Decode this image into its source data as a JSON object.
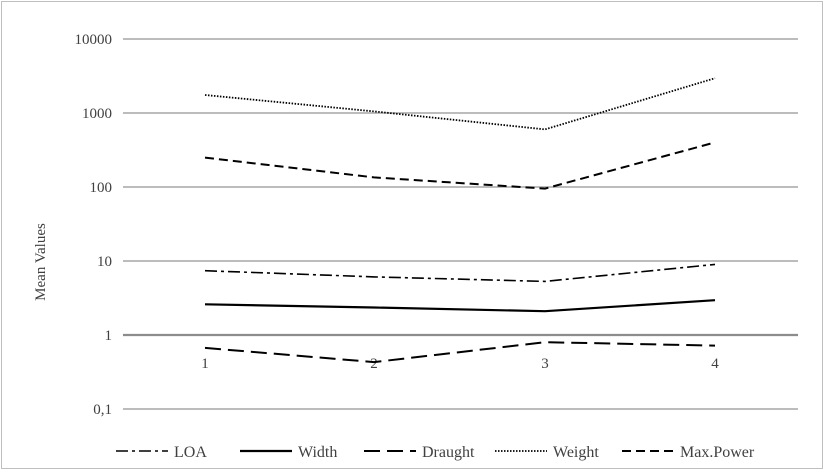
{
  "chart_data": {
    "type": "line",
    "title": "",
    "xlabel": "",
    "ylabel": "Mean Values",
    "y_scale": "log",
    "ylim": [
      0.1,
      10000
    ],
    "y_ticks": [
      "0,1",
      "1",
      "10",
      "100",
      "1000",
      "10000"
    ],
    "categories": [
      "1",
      "2",
      "3",
      "4"
    ],
    "series": [
      {
        "name": "LOA",
        "values": [
          7.4,
          6.1,
          5.3,
          9.0
        ],
        "dash": "12,4,3,4",
        "stroke_width": 1.6
      },
      {
        "name": "Width",
        "values": [
          2.6,
          2.35,
          2.1,
          2.95
        ],
        "dash": "",
        "stroke_width": 2.2
      },
      {
        "name": "Draught",
        "values": [
          0.67,
          0.43,
          0.8,
          0.72
        ],
        "dash": "16,7",
        "stroke_width": 2.0
      },
      {
        "name": "Weight",
        "values": [
          1750,
          1050,
          600,
          2950
        ],
        "dash": "1.5,1.5",
        "stroke_width": 1.8
      },
      {
        "name": "Max.Power",
        "values": [
          250,
          135,
          95,
          400
        ],
        "dash": "9,5",
        "stroke_width": 2.0
      }
    ],
    "grid": true,
    "legend_position": "bottom",
    "colors": {
      "series": "#000000",
      "grid": "#a6a6a6",
      "baseline": "#8c8c8c",
      "text": "#404040"
    }
  }
}
